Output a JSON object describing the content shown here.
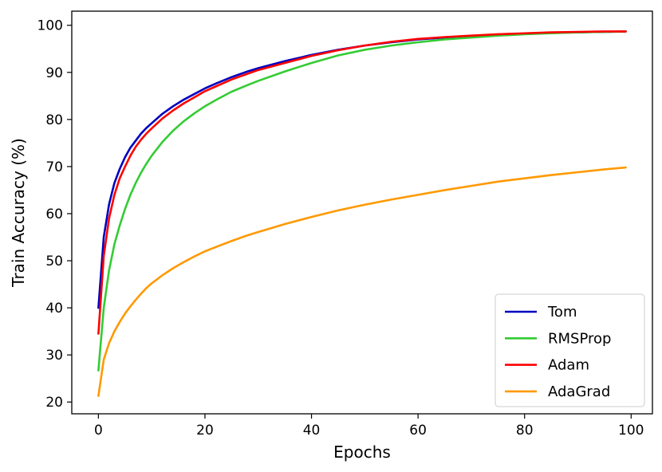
{
  "chart_data": {
    "type": "line",
    "title": "",
    "xlabel": "Epochs",
    "ylabel": "Train Accuracy (%)",
    "xlim": [
      -5,
      104
    ],
    "ylim": [
      17.5,
      103
    ],
    "xticks": [
      0,
      20,
      40,
      60,
      80,
      100
    ],
    "yticks": [
      20,
      30,
      40,
      50,
      60,
      70,
      80,
      90,
      100
    ],
    "grid": false,
    "legend_position": "bottom-right",
    "series": [
      {
        "name": "Tom",
        "color": "#0000bf",
        "x": [
          0,
          1,
          2,
          3,
          4,
          5,
          6,
          7,
          8,
          9,
          10,
          12,
          14,
          16,
          18,
          20,
          22,
          25,
          28,
          30,
          35,
          40,
          45,
          50,
          55,
          60,
          65,
          70,
          75,
          80,
          85,
          90,
          95,
          99
        ],
        "y": [
          40.0,
          55.0,
          62.0,
          66.5,
          69.5,
          72.0,
          74.0,
          75.5,
          77.0,
          78.2,
          79.2,
          81.2,
          82.8,
          84.2,
          85.4,
          86.6,
          87.6,
          89.0,
          90.2,
          90.9,
          92.4,
          93.7,
          94.8,
          95.7,
          96.4,
          97.0,
          97.4,
          97.7,
          98.0,
          98.2,
          98.4,
          98.5,
          98.6,
          98.7
        ]
      },
      {
        "name": "RMSProp",
        "color": "#33cc33",
        "x": [
          0,
          1,
          2,
          3,
          4,
          5,
          6,
          7,
          8,
          9,
          10,
          12,
          14,
          16,
          18,
          20,
          22,
          25,
          28,
          30,
          35,
          40,
          45,
          50,
          55,
          60,
          65,
          70,
          75,
          80,
          85,
          90,
          95,
          99
        ],
        "y": [
          26.7,
          40.0,
          48.0,
          53.5,
          57.5,
          61.0,
          64.0,
          66.5,
          68.7,
          70.6,
          72.3,
          75.2,
          77.6,
          79.6,
          81.3,
          82.8,
          84.1,
          85.9,
          87.3,
          88.2,
          90.2,
          92.0,
          93.6,
          94.8,
          95.7,
          96.4,
          97.0,
          97.4,
          97.8,
          98.1,
          98.3,
          98.5,
          98.6,
          98.7
        ]
      },
      {
        "name": "Adam",
        "color": "#ff0000",
        "x": [
          0,
          1,
          2,
          3,
          4,
          5,
          6,
          7,
          8,
          9,
          10,
          12,
          14,
          16,
          18,
          20,
          22,
          25,
          28,
          30,
          35,
          40,
          45,
          50,
          55,
          60,
          65,
          70,
          75,
          80,
          85,
          90,
          95,
          99
        ],
        "y": [
          34.5,
          51.0,
          59.0,
          64.0,
          67.5,
          70.0,
          72.3,
          74.2,
          75.7,
          77.0,
          78.1,
          80.2,
          81.9,
          83.4,
          84.7,
          86.0,
          87.0,
          88.5,
          89.7,
          90.5,
          92.0,
          93.5,
          94.7,
          95.7,
          96.5,
          97.1,
          97.5,
          97.8,
          98.1,
          98.3,
          98.5,
          98.6,
          98.7,
          98.7
        ]
      },
      {
        "name": "AdaGrad",
        "color": "#ff9900",
        "x": [
          0,
          1,
          2,
          3,
          4,
          5,
          6,
          7,
          8,
          9,
          10,
          12,
          14,
          16,
          18,
          20,
          22,
          25,
          28,
          30,
          35,
          40,
          45,
          50,
          55,
          60,
          65,
          70,
          75,
          80,
          85,
          90,
          95,
          99
        ],
        "y": [
          21.3,
          29.0,
          32.5,
          35.0,
          37.0,
          38.8,
          40.3,
          41.7,
          43.0,
          44.2,
          45.2,
          46.9,
          48.4,
          49.7,
          50.9,
          52.0,
          52.9,
          54.2,
          55.4,
          56.1,
          57.8,
          59.3,
          60.7,
          61.9,
          63.0,
          64.0,
          65.0,
          65.9,
          66.8,
          67.5,
          68.2,
          68.8,
          69.4,
          69.8
        ]
      }
    ]
  }
}
